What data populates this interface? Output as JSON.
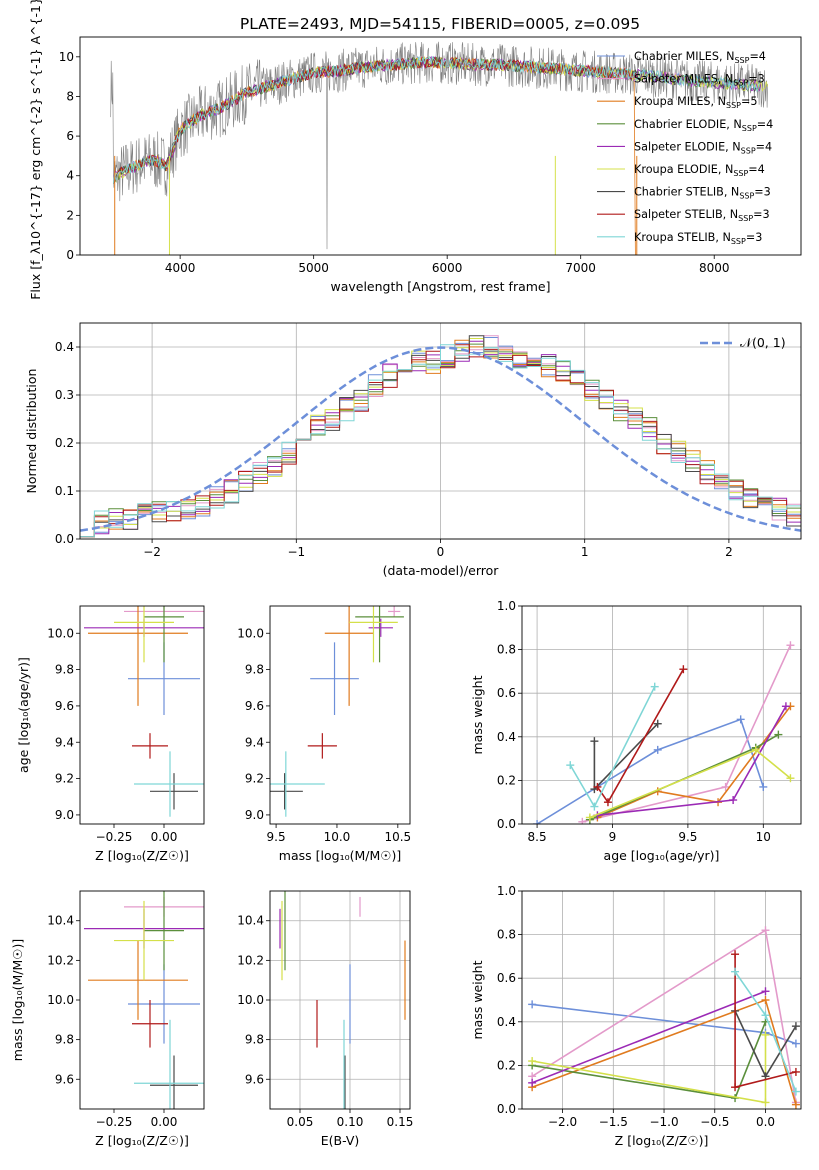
{
  "chart_data": [
    {
      "type": "line",
      "id": "spectrum",
      "title": "PLATE=2493, MJD=54115, FIBERID=0005, z=0.095",
      "xlabel": "wavelength [Angstrom, rest frame]",
      "ylabel": "Flux [f_λ10^{-17} erg cm^{-2} s^{-1} A^{-1}]",
      "xlim": [
        3250,
        8650
      ],
      "ylim": [
        0,
        11
      ],
      "xticks": [
        4000,
        5000,
        6000,
        7000,
        8000
      ],
      "yticks": [
        0,
        2,
        4,
        6,
        8,
        10
      ],
      "legend_position": "upper right",
      "series": [
        {
          "name": "Chabrier MILES, N_SSP=4",
          "color": "#6d8fd9"
        },
        {
          "name": "Salpeter MILES, N_SSP=3",
          "color": "#e39aca"
        },
        {
          "name": "Kroupa MILES, N_SSP=5",
          "color": "#e07b1f"
        },
        {
          "name": "Chabrier ELODIE, N_SSP=4",
          "color": "#5b8f3c"
        },
        {
          "name": "Salpeter ELODIE, N_SSP=4",
          "color": "#9b2ab5"
        },
        {
          "name": "Kroupa ELODIE, N_SSP=4",
          "color": "#d4e04a"
        },
        {
          "name": "Chabrier STELIB, N_SSP=3",
          "color": "#4a4a4a"
        },
        {
          "name": "Salpeter STELIB, N_SSP=3",
          "color": "#b01a1a"
        },
        {
          "name": "Kroupa STELIB, N_SSP=3",
          "color": "#7fd6d6"
        }
      ],
      "continuum": {
        "x": [
          3500,
          3600,
          3700,
          3800,
          3900,
          4000,
          4100,
          4200,
          4300,
          4400,
          4500,
          4600,
          4700,
          4800,
          4900,
          5000,
          5200,
          5400,
          5600,
          5800,
          6000,
          6200,
          6400,
          6600,
          6800,
          7000,
          7200,
          7400,
          7600,
          7800,
          8000,
          8200,
          8400
        ],
        "y": [
          3.9,
          4.3,
          4.6,
          4.8,
          4.5,
          6.3,
          6.8,
          7.2,
          7.4,
          7.8,
          8.2,
          8.4,
          8.6,
          8.8,
          9.0,
          9.2,
          9.3,
          9.5,
          9.6,
          9.7,
          9.7,
          9.6,
          9.6,
          9.5,
          9.4,
          9.3,
          9.2,
          9.1,
          9.0,
          8.8,
          8.7,
          8.6,
          8.5
        ]
      }
    },
    {
      "type": "histogram",
      "id": "residuals",
      "xlabel": "(data-model)/error",
      "ylabel": "Normed distribution",
      "xlim": [
        -2.5,
        2.5
      ],
      "ylim": [
        0,
        0.45
      ],
      "xticks": [
        -2,
        -1,
        0,
        1,
        2
      ],
      "yticks": [
        0.0,
        0.1,
        0.2,
        0.3,
        0.4
      ],
      "reference_label": "𝒩(0, 1)",
      "reference_color": "#6d8fd9",
      "grid": true,
      "bin_width": 0.1,
      "series_template": [
        0.03,
        0.035,
        0.04,
        0.045,
        0.05,
        0.055,
        0.06,
        0.065,
        0.07,
        0.085,
        0.1,
        0.12,
        0.14,
        0.155,
        0.18,
        0.21,
        0.24,
        0.25,
        0.27,
        0.29,
        0.32,
        0.34,
        0.36,
        0.37,
        0.37,
        0.38,
        0.39,
        0.4,
        0.4,
        0.39,
        0.38,
        0.37,
        0.36,
        0.35,
        0.33,
        0.31,
        0.29,
        0.27,
        0.25,
        0.23,
        0.2,
        0.18,
        0.16,
        0.14,
        0.12,
        0.1,
        0.09,
        0.075,
        0.06,
        0.05
      ]
    },
    {
      "type": "scatter",
      "id": "age_vs_Z",
      "xlabel": "Z [log₁₀(Z/Z☉)]",
      "ylabel": "age  [log₁₀(age/yr)]",
      "xlim": [
        -0.42,
        0.2
      ],
      "ylim": [
        8.95,
        10.15
      ],
      "xticks": [
        -0.25,
        0.0
      ],
      "xticklabels": [
        "−0.25",
        "0.00"
      ],
      "yticks": [
        9.0,
        9.2,
        9.4,
        9.6,
        9.8,
        10.0
      ]
    },
    {
      "type": "scatter",
      "id": "age_vs_mass",
      "xlabel": "mass [log₁₀(M/M☉)]",
      "ylabel": "",
      "xlim": [
        9.45,
        10.6
      ],
      "ylim": [
        8.95,
        10.15
      ],
      "xticks": [
        9.5,
        10.0,
        10.5
      ],
      "yticks": [
        9.0,
        9.2,
        9.4,
        9.6,
        9.8,
        10.0
      ]
    },
    {
      "type": "line",
      "id": "weight_vs_age",
      "xlabel": "age  [log₁₀(age/yr)]",
      "ylabel": "mass weight",
      "xlim": [
        8.4,
        10.25
      ],
      "ylim": [
        0,
        1.0
      ],
      "xticks": [
        8.5,
        9.0,
        9.5,
        10.0
      ],
      "yticks": [
        0.0,
        0.2,
        0.4,
        0.6,
        0.8,
        1.0
      ],
      "grid": true
    },
    {
      "type": "scatter",
      "id": "mass_vs_Z",
      "xlabel": "Z [log₁₀(Z/Z☉)]",
      "ylabel": "mass [log₁₀(M/M☉)]",
      "xlim": [
        -0.42,
        0.2
      ],
      "ylim": [
        9.45,
        10.55
      ],
      "xticks": [
        -0.25,
        0.0
      ],
      "xticklabels": [
        "−0.25",
        "0.00"
      ],
      "yticks": [
        9.6,
        9.8,
        10.0,
        10.2,
        10.4
      ]
    },
    {
      "type": "scatter",
      "id": "mass_vs_ebv",
      "xlabel": "E(B-V)",
      "ylabel": "",
      "xlim": [
        0.02,
        0.16
      ],
      "ylim": [
        9.45,
        10.55
      ],
      "xticks": [
        0.05,
        0.1,
        0.15
      ],
      "xticklabels": [
        "0.05",
        "0.10",
        "0.15"
      ],
      "yticks": [
        9.6,
        9.8,
        10.0,
        10.2,
        10.4
      ],
      "grid": true
    },
    {
      "type": "line",
      "id": "weight_vs_Z",
      "xlabel": "Z [log₁₀(Z/Z☉)]",
      "ylabel": "mass weight",
      "xlim": [
        -2.4,
        0.35
      ],
      "ylim": [
        0,
        1.0
      ],
      "xticks": [
        -2.0,
        -1.5,
        -1.0,
        -0.5,
        0.0
      ],
      "xticklabels": [
        "−2.0",
        "−1.5",
        "−1.0",
        "−0.5",
        "0.0"
      ],
      "yticks": [
        0.0,
        0.2,
        0.4,
        0.6,
        0.8,
        1.0
      ],
      "grid": true
    }
  ],
  "models": [
    {
      "color": "#6d8fd9",
      "Z": 0.0,
      "Zerr": 0.18,
      "age": 9.75,
      "ageErr": 0.2,
      "mass": 9.98,
      "massErr": 0.2,
      "ebv": 0.1,
      "ebvErr": 0.01,
      "ages": [
        8.5,
        9.3,
        9.85,
        10.0
      ],
      "weights_age": [
        0.0,
        0.34,
        0.48,
        0.17
      ],
      "Zs": [
        -2.3,
        0.0,
        0.3
      ],
      "weights_Z": [
        0.48,
        0.35,
        0.3
      ]
    },
    {
      "color": "#e39aca",
      "Z": 0.0,
      "Zerr": 0.2,
      "age": 10.12,
      "ageErr": 0.03,
      "mass": 10.47,
      "massErr": 0.05,
      "ebv": 0.11,
      "ebvErr": 0.005,
      "ages": [
        8.8,
        9.75,
        10.18
      ],
      "weights_age": [
        0.01,
        0.17,
        0.82
      ],
      "Zs": [
        -2.3,
        0.0,
        0.3
      ],
      "weights_Z": [
        0.15,
        0.82,
        0.03
      ]
    },
    {
      "color": "#e07b1f",
      "Z": -0.13,
      "Zerr": 0.25,
      "age": 10.0,
      "ageErr": 0.4,
      "mass": 10.1,
      "massErr": 0.2,
      "ebv": 0.155,
      "ebvErr": 0.002,
      "ages": [
        8.9,
        9.3,
        9.7,
        10.18
      ],
      "weights_age": [
        0.03,
        0.15,
        0.1,
        0.54
      ],
      "Zs": [
        -2.3,
        0.0,
        0.3
      ],
      "weights_Z": [
        0.1,
        0.5,
        0.02
      ]
    },
    {
      "color": "#5b8f3c",
      "Z": 0.0,
      "Zerr": 0.1,
      "age": 10.09,
      "ageErr": 0.25,
      "mass": 10.35,
      "massErr": 0.2,
      "ebv": 0.035,
      "ebvErr": 0.002,
      "ages": [
        8.85,
        9.95,
        10.1
      ],
      "weights_age": [
        0.02,
        0.35,
        0.41
      ],
      "Zs": [
        -2.3,
        -0.3,
        0.0
      ],
      "weights_Z": [
        0.2,
        0.05,
        0.4
      ]
    },
    {
      "color": "#9b2ab5",
      "Z": -0.1,
      "Zerr": 0.3,
      "age": 10.03,
      "ageErr": 0.05,
      "mass": 10.36,
      "massErr": 0.1,
      "ebv": 0.03,
      "ebvErr": 0.004,
      "ages": [
        8.9,
        9.8,
        10.15
      ],
      "weights_age": [
        0.04,
        0.11,
        0.54
      ],
      "Zs": [
        -2.3,
        0.0
      ],
      "weights_Z": [
        0.12,
        0.54
      ]
    },
    {
      "color": "#d4e04a",
      "Z": -0.1,
      "Zerr": 0.15,
      "age": 10.06,
      "ageErr": 0.22,
      "mass": 10.3,
      "massErr": 0.2,
      "ebv": 0.032,
      "ebvErr": 0.002,
      "ages": [
        8.85,
        9.95,
        10.18
      ],
      "weights_age": [
        0.03,
        0.34,
        0.21
      ],
      "Zs": [
        -2.3,
        0.0,
        0.0
      ],
      "weights_Z": [
        0.22,
        0.03,
        0.34
      ]
    },
    {
      "color": "#4a4a4a",
      "Z": 0.05,
      "Zerr": 0.12,
      "age": 9.13,
      "ageErr": 0.1,
      "mass": 9.57,
      "massErr": 0.15,
      "ebv": 0.095,
      "ebvErr": 0.01,
      "ages": [
        8.88,
        8.88,
        9.3
      ],
      "weights_age": [
        0.38,
        0.16,
        0.46
      ],
      "Zs": [
        -0.3,
        0.0,
        0.3
      ],
      "weights_Z": [
        0.45,
        0.15,
        0.38
      ]
    },
    {
      "color": "#b01a1a",
      "Z": -0.07,
      "Zerr": 0.09,
      "age": 9.38,
      "ageErr": 0.07,
      "mass": 9.88,
      "massErr": 0.12,
      "ebv": 0.067,
      "ebvErr": 0.004,
      "ages": [
        8.9,
        8.97,
        9.47
      ],
      "weights_age": [
        0.17,
        0.1,
        0.71
      ],
      "Zs": [
        -0.3,
        -0.3,
        0.3
      ],
      "weights_Z": [
        0.71,
        0.1,
        0.17
      ]
    },
    {
      "color": "#7fd6d6",
      "Z": 0.03,
      "Zerr": 0.18,
      "age": 9.17,
      "ageErr": 0.18,
      "mass": 9.58,
      "massErr": 0.32,
      "ebv": 0.094,
      "ebvErr": 0.005,
      "ages": [
        8.72,
        8.88,
        9.28
      ],
      "weights_age": [
        0.27,
        0.08,
        0.63
      ],
      "Zs": [
        -0.3,
        0.0,
        0.3
      ],
      "weights_Z": [
        0.63,
        0.43,
        0.08
      ]
    }
  ]
}
